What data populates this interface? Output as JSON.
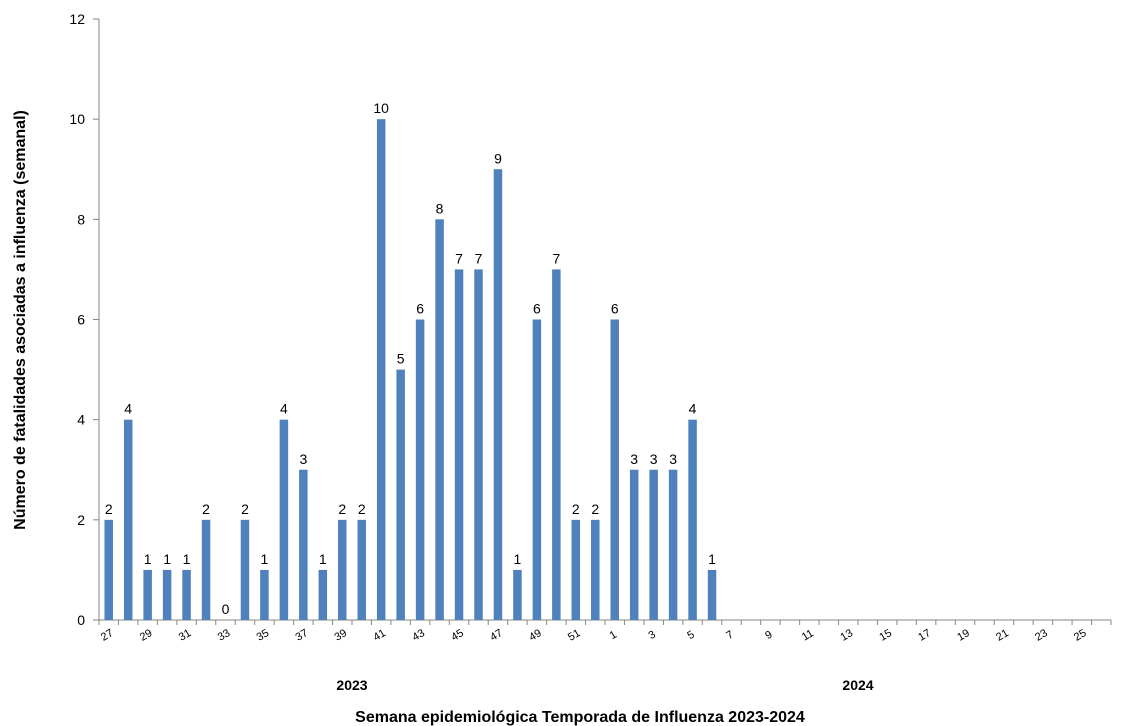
{
  "chart_data": {
    "type": "bar",
    "title": "",
    "xlabel": "Semana epidemiológica Temporada de Influenza 2023-2024",
    "ylabel": "Número de fatalidades asociadas a influenza (semanal)",
    "ylim": [
      0,
      12
    ],
    "yticks": [
      0,
      2,
      4,
      6,
      8,
      10,
      12
    ],
    "grid": false,
    "legend": "none",
    "bar_color": "#4F81BD",
    "categories": [
      "27",
      "28",
      "29",
      "30",
      "31",
      "32",
      "33",
      "34",
      "35",
      "36",
      "37",
      "38",
      "39",
      "40",
      "41",
      "42",
      "43",
      "44",
      "45",
      "46",
      "47",
      "48",
      "49",
      "50",
      "51",
      "52",
      "1",
      "2",
      "3",
      "4",
      "5",
      "6",
      "7",
      "8",
      "9",
      "10",
      "11",
      "12",
      "13",
      "14",
      "15",
      "16",
      "17",
      "18",
      "19",
      "20",
      "21",
      "22",
      "23",
      "24",
      "25",
      "26"
    ],
    "tick_labels_shown": [
      "27",
      "29",
      "31",
      "33",
      "35",
      "37",
      "39",
      "41",
      "43",
      "45",
      "47",
      "49",
      "51",
      "1",
      "3",
      "5",
      "7",
      "9",
      "11",
      "13",
      "15",
      "17",
      "19",
      "21",
      "23",
      "25"
    ],
    "series": [
      {
        "values": [
          2,
          4,
          1,
          1,
          1,
          2,
          0,
          2,
          1,
          4,
          3,
          1,
          2,
          2,
          10,
          5,
          6,
          8,
          7,
          7,
          9,
          1,
          6,
          7,
          2,
          2,
          6,
          3,
          3,
          3,
          4,
          1,
          null,
          null,
          null,
          null,
          null,
          null,
          null,
          null,
          null,
          null,
          null,
          null,
          null,
          null,
          null,
          null,
          null,
          null,
          null,
          null
        ]
      }
    ],
    "groups": [
      {
        "label": "2023",
        "from": "27",
        "to": "52"
      },
      {
        "label": "2024",
        "from": "1",
        "to": "26"
      }
    ]
  }
}
